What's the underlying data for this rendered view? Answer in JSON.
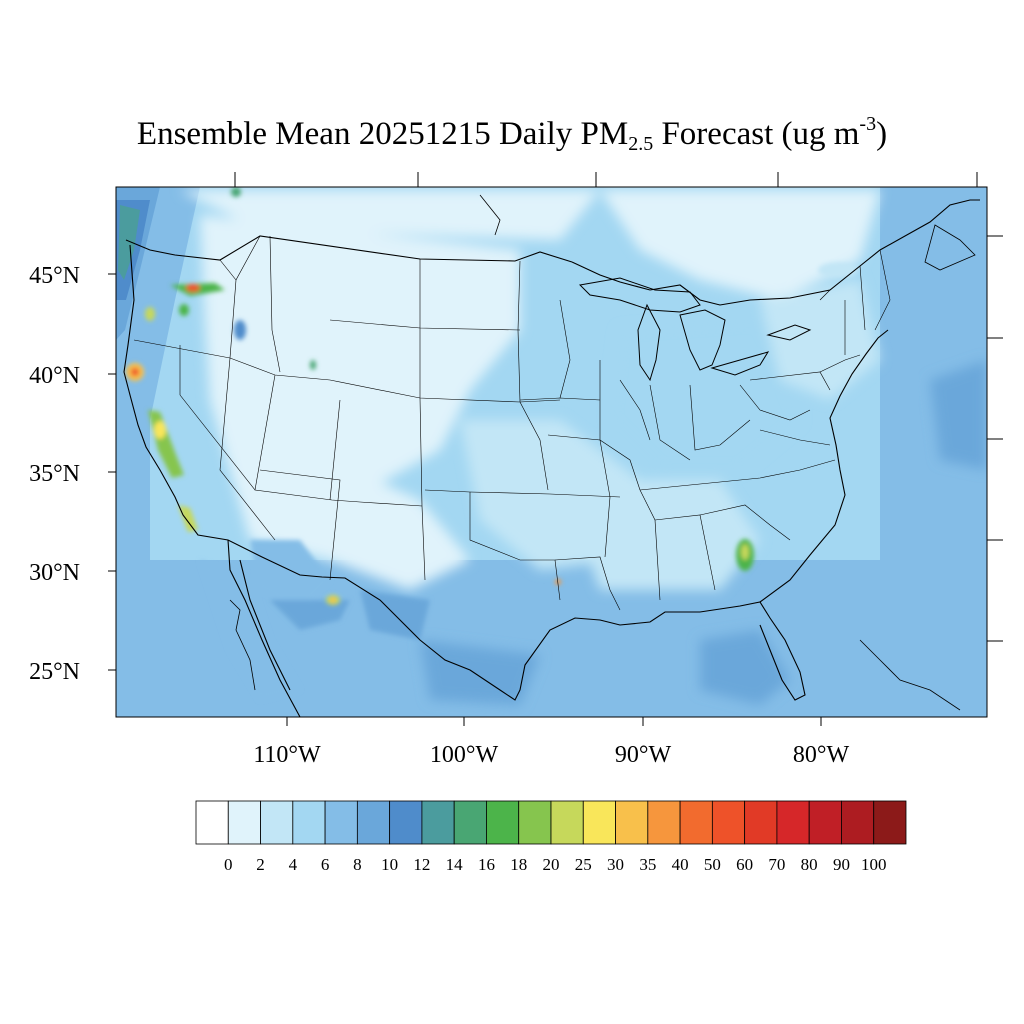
{
  "title": {
    "main": "Ensemble Mean 20251215 Daily PM",
    "sub": "2.5",
    "mid": " Forecast (ug m",
    "sup": "-3",
    "end": ")"
  },
  "axes": {
    "lat_labels": [
      "45°N",
      "40°N",
      "35°N",
      "30°N",
      "25°N"
    ],
    "lon_labels": [
      "110°W",
      "100°W",
      "90°W",
      "80°W"
    ]
  },
  "colorbar": {
    "labels": [
      "0",
      "2",
      "4",
      "6",
      "8",
      "10",
      "12",
      "14",
      "16",
      "18",
      "20",
      "25",
      "30",
      "35",
      "40",
      "50",
      "60",
      "70",
      "80",
      "90",
      "100"
    ],
    "colors": [
      "#ffffff",
      "#e0f3fb",
      "#c2e6f6",
      "#a3d7f2",
      "#84bde7",
      "#6aa7da",
      "#4f8ccb",
      "#4b9c9e",
      "#49a673",
      "#4cb44a",
      "#86c54e",
      "#c6d85b",
      "#f9e65a",
      "#f8c04b",
      "#f6963d",
      "#f26b2e",
      "#ee5229",
      "#e13a26",
      "#d62729",
      "#c01f26",
      "#ad1c21",
      "#8c1a19"
    ]
  }
}
